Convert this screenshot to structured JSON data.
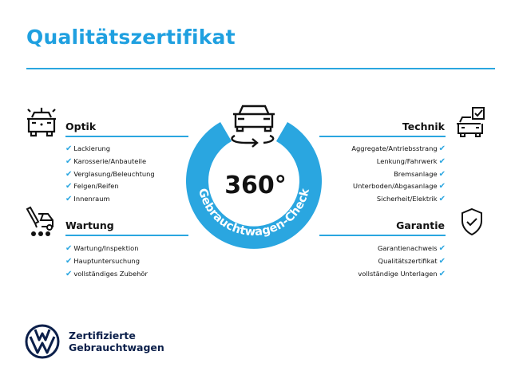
{
  "title": "Qualitätszertifikat",
  "accent": "#2aa6e0",
  "center": {
    "big": "360°",
    "ring": "Gebrauchtwagen-Check"
  },
  "optik": {
    "heading": "Optik",
    "items": [
      "Lackierung",
      "Karosserie/Anbauteile",
      "Verglasung/Beleuchtung",
      "Felgen/Reifen",
      "Innenraum"
    ]
  },
  "wartung": {
    "heading": "Wartung",
    "items": [
      "Wartung/Inspektion",
      "Hauptuntersuchung",
      "vollständiges Zubehör"
    ]
  },
  "technik": {
    "heading": "Technik",
    "items": [
      "Aggregate/Antriebsstrang",
      "Lenkung/Fahrwerk",
      "Bremsanlage",
      "Unterboden/Abgasanlage",
      "Sicherheit/Elektrik"
    ]
  },
  "garantie": {
    "heading": "Garantie",
    "items": [
      "Garantienachweis",
      "Qualitätszertifikat",
      "vollständige Unterlagen"
    ]
  },
  "check": "✔",
  "footer": {
    "line1": "Zertifizierte",
    "line2": "Gebrauchtwagen",
    "logo": "VW"
  }
}
